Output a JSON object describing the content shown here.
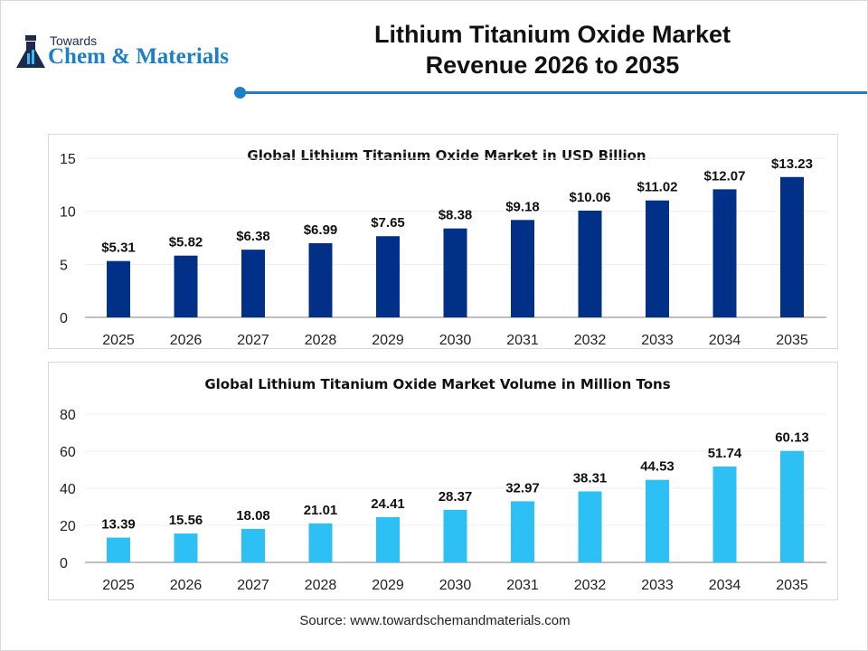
{
  "logo": {
    "line1": "Towards",
    "line2": "Chem & Materials"
  },
  "title_line1": "Lithium Titanium Oxide Market",
  "title_line2": "Revenue 2026 to 2035",
  "source": "Source: www.towardschemandmaterials.com",
  "chart_data": [
    {
      "type": "bar",
      "title": "Global Lithium Titanium Oxide Market in USD Billion",
      "categories": [
        "2025",
        "2026",
        "2027",
        "2028",
        "2029",
        "2030",
        "2031",
        "2032",
        "2033",
        "2034",
        "2035"
      ],
      "values": [
        5.31,
        5.82,
        6.38,
        6.99,
        7.65,
        8.38,
        9.18,
        10.06,
        11.02,
        12.07,
        13.23
      ],
      "labels": [
        "$5.31",
        "$5.82",
        "$6.38",
        "$6.99",
        "$7.65",
        "$8.38",
        "$9.18",
        "$10.06",
        "$11.02",
        "$12.07",
        "$13.23"
      ],
      "yticks": [
        "0",
        "5",
        "10",
        "15"
      ],
      "ylim": [
        0,
        15
      ],
      "grid": true,
      "color": "#003087"
    },
    {
      "type": "bar",
      "title": "Global Lithium Titanium Oxide Market Volume in Million Tons",
      "categories": [
        "2025",
        "2026",
        "2027",
        "2028",
        "2029",
        "2030",
        "2031",
        "2032",
        "2033",
        "2034",
        "2035"
      ],
      "values": [
        13.39,
        15.56,
        18.08,
        21.01,
        24.41,
        28.37,
        32.97,
        38.31,
        44.53,
        51.74,
        60.13
      ],
      "labels": [
        "13.39",
        "15.56",
        "18.08",
        "21.01",
        "24.41",
        "28.37",
        "32.97",
        "38.31",
        "44.53",
        "51.74",
        "60.13"
      ],
      "yticks": [
        "0",
        "20",
        "40",
        "60",
        "80"
      ],
      "ylim": [
        0,
        80
      ],
      "grid": true,
      "color": "#2dc0f5"
    }
  ]
}
